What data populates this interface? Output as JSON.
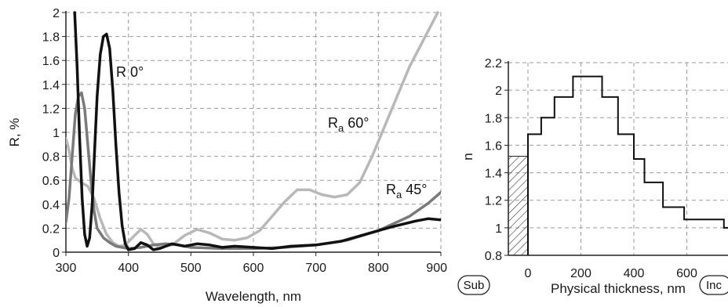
{
  "chart_data": [
    {
      "type": "line",
      "xlabel": "Wavelength, nm",
      "ylabel": "R, %",
      "xlim": [
        300,
        900
      ],
      "ylim": [
        0,
        2
      ],
      "x_ticks": [
        300,
        400,
        500,
        600,
        700,
        800,
        900
      ],
      "y_ticks": [
        0,
        0.2,
        0.4,
        0.6,
        0.8,
        1,
        1.2,
        1.4,
        1.6,
        1.8,
        2
      ],
      "grid": true,
      "annotations": [
        "R 0°",
        "Ra 60°",
        "Ra 45°"
      ],
      "series": [
        {
          "name": "R 0°",
          "color": "#111111",
          "points": [
            [
              314,
              2.0
            ],
            [
              318,
              1.55
            ],
            [
              322,
              0.95
            ],
            [
              326,
              0.45
            ],
            [
              330,
              0.15
            ],
            [
              334,
              0.05
            ],
            [
              338,
              0.12
            ],
            [
              342,
              0.4
            ],
            [
              346,
              0.85
            ],
            [
              350,
              1.3
            ],
            [
              355,
              1.65
            ],
            [
              360,
              1.8
            ],
            [
              365,
              1.82
            ],
            [
              370,
              1.7
            ],
            [
              375,
              1.35
            ],
            [
              380,
              0.9
            ],
            [
              385,
              0.5
            ],
            [
              390,
              0.22
            ],
            [
              395,
              0.07
            ],
            [
              400,
              0.02
            ],
            [
              410,
              0.03
            ],
            [
              420,
              0.08
            ],
            [
              430,
              0.06
            ],
            [
              440,
              0.02
            ],
            [
              450,
              0.03
            ],
            [
              470,
              0.07
            ],
            [
              490,
              0.05
            ],
            [
              510,
              0.07
            ],
            [
              530,
              0.06
            ],
            [
              550,
              0.04
            ],
            [
              570,
              0.05
            ],
            [
              600,
              0.04
            ],
            [
              630,
              0.03
            ],
            [
              660,
              0.05
            ],
            [
              700,
              0.06
            ],
            [
              740,
              0.09
            ],
            [
              780,
              0.15
            ],
            [
              820,
              0.21
            ],
            [
              860,
              0.26
            ],
            [
              880,
              0.28
            ],
            [
              900,
              0.27
            ]
          ]
        },
        {
          "name": "Ra 45°",
          "color": "#7a7a7a",
          "points": [
            [
              300,
              0.25
            ],
            [
              305,
              0.45
            ],
            [
              310,
              0.8
            ],
            [
              315,
              1.15
            ],
            [
              320,
              1.3
            ],
            [
              325,
              1.33
            ],
            [
              330,
              1.2
            ],
            [
              335,
              0.9
            ],
            [
              340,
              0.6
            ],
            [
              345,
              0.35
            ],
            [
              350,
              0.2
            ],
            [
              360,
              0.12
            ],
            [
              370,
              0.08
            ],
            [
              380,
              0.05
            ],
            [
              400,
              0.03
            ],
            [
              420,
              0.04
            ],
            [
              440,
              0.06
            ],
            [
              460,
              0.07
            ],
            [
              480,
              0.06
            ],
            [
              500,
              0.04
            ],
            [
              550,
              0.03
            ],
            [
              600,
              0.03
            ],
            [
              650,
              0.04
            ],
            [
              700,
              0.06
            ],
            [
              750,
              0.1
            ],
            [
              800,
              0.18
            ],
            [
              850,
              0.3
            ],
            [
              880,
              0.41
            ],
            [
              900,
              0.5
            ]
          ]
        },
        {
          "name": "Ra 60°",
          "color": "#b8b8b8",
          "points": [
            [
              300,
              0.95
            ],
            [
              305,
              0.85
            ],
            [
              310,
              0.7
            ],
            [
              315,
              0.62
            ],
            [
              320,
              0.6
            ],
            [
              325,
              0.58
            ],
            [
              335,
              0.55
            ],
            [
              345,
              0.45
            ],
            [
              355,
              0.28
            ],
            [
              365,
              0.15
            ],
            [
              375,
              0.08
            ],
            [
              385,
              0.05
            ],
            [
              395,
              0.06
            ],
            [
              410,
              0.14
            ],
            [
              420,
              0.19
            ],
            [
              430,
              0.15
            ],
            [
              440,
              0.07
            ],
            [
              450,
              0.04
            ],
            [
              470,
              0.06
            ],
            [
              490,
              0.14
            ],
            [
              510,
              0.19
            ],
            [
              530,
              0.16
            ],
            [
              550,
              0.11
            ],
            [
              570,
              0.1
            ],
            [
              590,
              0.12
            ],
            [
              610,
              0.18
            ],
            [
              630,
              0.3
            ],
            [
              650,
              0.42
            ],
            [
              670,
              0.52
            ],
            [
              690,
              0.52
            ],
            [
              710,
              0.48
            ],
            [
              730,
              0.46
            ],
            [
              750,
              0.48
            ],
            [
              770,
              0.58
            ],
            [
              790,
              0.8
            ],
            [
              810,
              1.05
            ],
            [
              830,
              1.3
            ],
            [
              850,
              1.55
            ],
            [
              870,
              1.75
            ],
            [
              885,
              1.9
            ],
            [
              895,
              2.0
            ]
          ]
        }
      ]
    },
    {
      "type": "line",
      "xlabel": "Physical thickness, nm",
      "ylabel": "n",
      "xlim": [
        -50,
        800
      ],
      "ylim": [
        0.8,
        2.2
      ],
      "x_ticks": [
        0,
        200,
        400,
        600
      ],
      "y_ticks": [
        0.8,
        1,
        1.2,
        1.4,
        1.6,
        1.8,
        2,
        2.2
      ],
      "grid": true,
      "substrate_n": 1.52,
      "incident_n": 1.0,
      "labels": {
        "sub": "Sub",
        "inc": "Inc"
      },
      "series": [
        {
          "name": "n",
          "color": "#111111",
          "steps": [
            [
              0,
              1.68
            ],
            [
              50,
              1.8
            ],
            [
              100,
              1.95
            ],
            [
              170,
              2.1
            ],
            [
              280,
              1.95
            ],
            [
              340,
              1.68
            ],
            [
              400,
              1.5
            ],
            [
              440,
              1.33
            ],
            [
              510,
              1.15
            ],
            [
              590,
              1.06
            ],
            [
              740,
              1.0
            ]
          ]
        }
      ]
    }
  ]
}
